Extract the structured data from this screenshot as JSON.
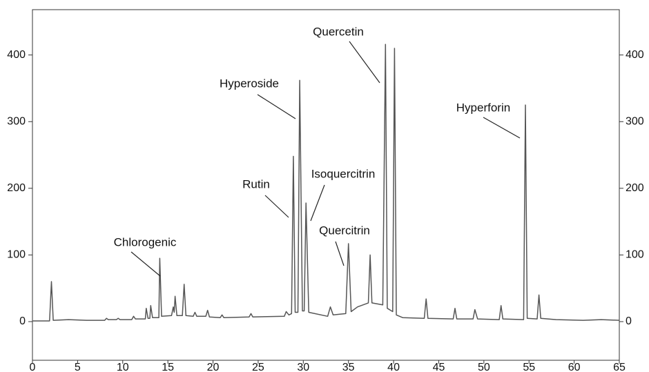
{
  "chart_data": {
    "type": "line",
    "x": [
      0,
      1.9,
      2.1,
      2.3,
      4,
      6,
      8,
      8.2,
      8.4,
      9.3,
      9.5,
      9.7,
      11,
      11.2,
      11.4,
      12.5,
      12.6,
      12.8,
      13,
      13.1,
      13.3,
      14.0,
      14.1,
      14.3,
      15.4,
      15.6,
      15.7,
      15.8,
      16.0,
      16.6,
      16.8,
      17.0,
      17.8,
      18.0,
      18.2,
      19.2,
      19.4,
      19.6,
      20.8,
      21,
      21.2,
      24,
      24.2,
      24.4,
      27.9,
      28.1,
      28.4,
      28.7,
      28.9,
      29.1,
      29.4,
      29.6,
      29.9,
      30.1,
      30.3,
      30.6,
      32.7,
      33,
      33.3,
      34.7,
      35,
      35.3,
      36,
      37.2,
      37.4,
      37.6,
      38.8,
      39.1,
      39.3,
      39.9,
      40.1,
      40.3,
      41,
      43.4,
      43.6,
      43.8,
      46.6,
      46.8,
      47,
      48.8,
      49,
      49.3,
      51.7,
      51.9,
      52.1,
      54.4,
      54.6,
      54.8,
      55.9,
      56.1,
      56.3,
      58,
      61,
      63,
      65
    ],
    "series": [
      {
        "color": "#555555",
        "values": [
          1,
          1,
          60,
          2,
          3,
          2,
          2,
          5,
          3,
          3,
          5,
          3,
          3,
          8,
          4,
          4,
          20,
          5,
          5,
          24,
          6,
          6,
          95,
          8,
          9,
          22,
          14,
          38,
          9,
          9,
          56,
          9,
          8,
          14,
          8,
          8,
          17,
          7,
          6,
          10,
          6,
          7,
          12,
          7,
          8,
          15,
          10,
          12,
          248,
          14,
          14,
          362,
          16,
          16,
          178,
          14,
          8,
          22,
          10,
          12,
          117,
          15,
          22,
          28,
          100,
          28,
          25,
          416,
          20,
          15,
          410,
          10,
          6,
          5,
          34,
          5,
          4,
          20,
          4,
          4,
          18,
          4,
          3,
          24,
          4,
          3,
          325,
          5,
          4,
          40,
          5,
          3,
          2,
          3,
          2
        ]
      }
    ],
    "xlim": [
      0,
      65
    ],
    "xticks": [
      0,
      5,
      10,
      15,
      20,
      25,
      30,
      35,
      40,
      45,
      50,
      55,
      60,
      65
    ],
    "ylim": [
      -58,
      468
    ],
    "yticks": [
      0,
      100,
      200,
      300,
      400
    ],
    "y2lim": [
      -58,
      468
    ],
    "y2ticks": [
      0,
      100,
      200,
      300,
      400
    ],
    "annotations": [
      "Chlorogenic",
      "Rutin",
      "Hyperoside",
      "Isoquercitrin",
      "Quercitrin",
      "Quercetin",
      "Hyperforin"
    ]
  }
}
